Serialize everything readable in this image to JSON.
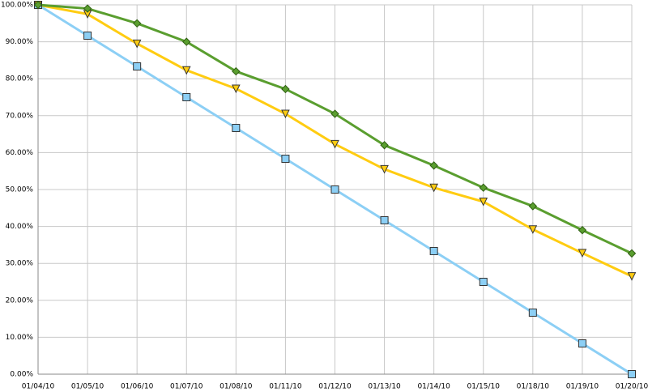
{
  "chart_data": {
    "type": "line",
    "categories": [
      "01/04/10",
      "01/05/10",
      "01/06/10",
      "01/07/10",
      "01/08/10",
      "01/11/10",
      "01/12/10",
      "01/13/10",
      "01/14/10",
      "01/15/10",
      "01/18/10",
      "01/19/10",
      "01/20/10"
    ],
    "series": [
      {
        "color": "#8ccff5",
        "marker": "square",
        "values": [
          100,
          91.67,
          83.33,
          75,
          66.67,
          58.33,
          50,
          41.67,
          33.33,
          25,
          16.67,
          8.33,
          0
        ]
      },
      {
        "color": "#ffcc11",
        "marker": "triangle-down",
        "values": [
          100,
          97.5,
          89.5,
          82.3,
          77.3,
          70.5,
          62.3,
          55.5,
          50.5,
          46.7,
          39.2,
          32.8,
          26.5
        ]
      },
      {
        "color": "#5a9e2f",
        "marker": "diamond",
        "values": [
          100,
          99,
          95,
          90,
          82,
          77.2,
          70.5,
          62,
          56.5,
          50.5,
          45.5,
          39,
          32.7
        ]
      }
    ],
    "ylim": [
      0,
      100
    ],
    "yticks": [
      {
        "value": 0,
        "label": "0.00%"
      },
      {
        "value": 10,
        "label": "10.00%"
      },
      {
        "value": 20,
        "label": "20.00%"
      },
      {
        "value": 30,
        "label": "30.00%"
      },
      {
        "value": 40,
        "label": "40.00%"
      },
      {
        "value": 50,
        "label": "50.00%"
      },
      {
        "value": 60,
        "label": "60.00%"
      },
      {
        "value": 70,
        "label": "70.00%"
      },
      {
        "value": 80,
        "label": "80.00%"
      },
      {
        "value": 90,
        "label": "90.00%"
      },
      {
        "value": 100,
        "label": "100.00%"
      }
    ],
    "grid": true
  }
}
